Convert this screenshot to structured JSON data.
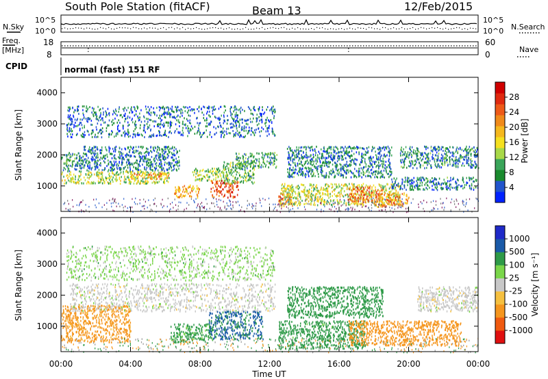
{
  "header": {
    "station": "South Pole Station (fitACF)",
    "beam": "Beam 13",
    "date": "12/Feb/2015",
    "nsky_label": "N.Sky",
    "nsearch_label": "N.Search",
    "freq_label_1": "Freq.",
    "freq_label_2": "[MHz]",
    "nave_label": "Nave",
    "cpid_label": "CPID",
    "cpid_value": "normal (fast) 151 RF",
    "noise_ticks_left": [
      "10^5",
      "10^0"
    ],
    "noise_ticks_right": [
      "10^5",
      "10^0"
    ],
    "freq_ticks": [
      "18",
      "8"
    ],
    "nave_ticks": [
      "60",
      "0"
    ]
  },
  "chart_data": [
    {
      "type": "heatmap",
      "panel": "power",
      "xlabel": "Time UT",
      "ylabel": "Slant Range [km]",
      "x": [
        "00:00",
        "04:00",
        "08:00",
        "12:00",
        "16:00",
        "20:00",
        "00:00"
      ],
      "xlim_hours": [
        0,
        24
      ],
      "ylim": [
        180,
        4500
      ],
      "yticks": [
        1000,
        2000,
        3000,
        4000
      ],
      "colorbar": {
        "label": "Power [dB]",
        "ticks": [
          "28",
          "24",
          "20",
          "16",
          "12",
          "8",
          "4"
        ],
        "range": [
          0,
          30
        ],
        "colors": [
          "#0022ff",
          "#2255cc",
          "#1a8a2e",
          "#3aa55a",
          "#a8d848",
          "#f5e020",
          "#f5b81e",
          "#f08a1a",
          "#ee5a18",
          "#e02a10",
          "#d00000"
        ]
      },
      "scatter_regions": [
        {
          "t0": 0.0,
          "t1": 1.3,
          "r0": 1500,
          "r1": 2100,
          "level": 7
        },
        {
          "t0": 1.3,
          "t1": 6.8,
          "r0": 1500,
          "r1": 2300,
          "level": 6
        },
        {
          "t0": 0.0,
          "t1": 6.2,
          "r0": 1100,
          "r1": 1500,
          "level": 13
        },
        {
          "t0": 4.0,
          "t1": 6.2,
          "r0": 1250,
          "r1": 1450,
          "level": 20
        },
        {
          "t0": 6.5,
          "t1": 8.0,
          "r0": 650,
          "r1": 1050,
          "level": 18
        },
        {
          "t0": 7.5,
          "t1": 9.6,
          "r0": 1200,
          "r1": 1600,
          "level": 12
        },
        {
          "t0": 8.6,
          "t1": 10.2,
          "r0": 650,
          "r1": 1200,
          "level": 24
        },
        {
          "t0": 9.3,
          "t1": 11.1,
          "r0": 1100,
          "r1": 1800,
          "level": 10
        },
        {
          "t0": 10.0,
          "t1": 12.4,
          "r0": 1600,
          "r1": 2100,
          "level": 8
        },
        {
          "t0": 12.5,
          "t1": 13.3,
          "r0": 350,
          "r1": 800,
          "level": 22
        },
        {
          "t0": 12.6,
          "t1": 19.5,
          "r0": 400,
          "r1": 1100,
          "level": 14
        },
        {
          "t0": 16.5,
          "t1": 18.5,
          "r0": 500,
          "r1": 1000,
          "level": 22
        },
        {
          "t0": 13.0,
          "t1": 19.0,
          "r0": 1300,
          "r1": 2300,
          "level": 6
        },
        {
          "t0": 18.0,
          "t1": 20.0,
          "r0": 350,
          "r1": 800,
          "level": 20
        },
        {
          "t0": 19.0,
          "t1": 24.0,
          "r0": 900,
          "r1": 1300,
          "level": 6
        },
        {
          "t0": 19.5,
          "t1": 24.0,
          "r0": 1600,
          "r1": 2300,
          "level": 7
        },
        {
          "t0": 0.3,
          "t1": 12.3,
          "r0": 2600,
          "r1": 3600,
          "level": 5
        }
      ]
    },
    {
      "type": "heatmap",
      "panel": "velocity",
      "xlabel": "Time UT",
      "ylabel": "Slant Range [km]",
      "x": [
        "00:00",
        "04:00",
        "08:00",
        "12:00",
        "16:00",
        "20:00",
        "00:00"
      ],
      "xlim_hours": [
        0,
        24
      ],
      "ylim": [
        180,
        4500
      ],
      "yticks": [
        1000,
        2000,
        3000,
        4000
      ],
      "colorbar": {
        "label": "Velocity [m s⁻¹]",
        "ticks": [
          "1000",
          "500",
          "100",
          "25",
          "-25",
          "-100",
          "-500",
          "-1000"
        ],
        "range": [
          -1000,
          1000
        ],
        "colors": [
          "#e01010",
          "#f05a10",
          "#f5961e",
          "#f5c040",
          "#c8c8c8",
          "#7ad64a",
          "#2e9a48",
          "#1a5aa8",
          "#1f2ac8"
        ]
      },
      "scatter_regions": [
        {
          "t0": 0.0,
          "t1": 4.0,
          "r0": 500,
          "r1": 1700,
          "velocity": -200
        },
        {
          "t0": 0.5,
          "t1": 12.3,
          "r0": 1500,
          "r1": 2400,
          "velocity": 0
        },
        {
          "t0": 6.3,
          "t1": 8.7,
          "r0": 500,
          "r1": 1100,
          "velocity": 200
        },
        {
          "t0": 8.5,
          "t1": 11.6,
          "r0": 600,
          "r1": 1500,
          "velocity": 600
        },
        {
          "t0": 12.5,
          "t1": 17.5,
          "r0": 300,
          "r1": 1200,
          "velocity": 250
        },
        {
          "t0": 13.0,
          "t1": 18.5,
          "r0": 1300,
          "r1": 2300,
          "velocity": 300
        },
        {
          "t0": 16.5,
          "t1": 23.0,
          "r0": 400,
          "r1": 1200,
          "velocity": -300
        },
        {
          "t0": 20.5,
          "t1": 24.0,
          "r0": 1500,
          "r1": 2300,
          "velocity": 0
        },
        {
          "t0": 0.3,
          "t1": 12.3,
          "r0": 2500,
          "r1": 3600,
          "velocity": 50
        }
      ]
    }
  ]
}
